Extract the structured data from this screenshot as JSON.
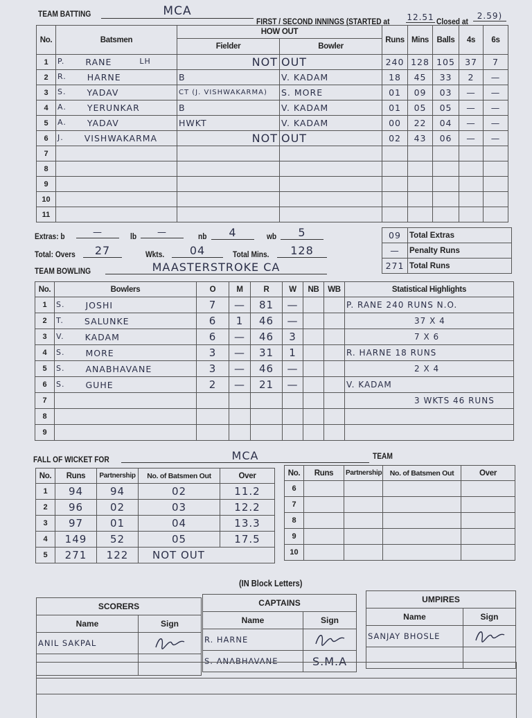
{
  "header": {
    "team_batting_label": "TEAM BATTING",
    "team_batting": "MCA",
    "innings_label": "FIRST / SECOND INNINGS (STARTED at",
    "started_at": "12.51",
    "closed_label": "Closed at",
    "closed_at": "2.59)"
  },
  "batting": {
    "headers": {
      "no": "No.",
      "batsmen": "Batsmen",
      "how_out": "HOW OUT",
      "fielder": "Fielder",
      "bowler": "Bowler",
      "runs": "Runs",
      "mins": "Mins",
      "balls": "Balls",
      "fours": "4s",
      "sixes": "6s"
    },
    "rows": [
      {
        "no": "1",
        "initial": "P.",
        "name": "RANE",
        "note": "LH",
        "fielder": "NOT",
        "bowler": "OUT",
        "runs": "240",
        "mins": "128",
        "balls": "105",
        "fours": "37",
        "sixes": "7"
      },
      {
        "no": "2",
        "initial": "R.",
        "name": "HARNE",
        "note": "",
        "fielder": "B",
        "bowler": "V. KADAM",
        "runs": "18",
        "mins": "45",
        "balls": "33",
        "fours": "2",
        "sixes": "—"
      },
      {
        "no": "3",
        "initial": "S.",
        "name": "YADAV",
        "note": "",
        "fielder": "CT (J. VISHWAKARMA)",
        "bowler": "S. MORE",
        "runs": "01",
        "mins": "09",
        "balls": "03",
        "fours": "—",
        "sixes": "—"
      },
      {
        "no": "4",
        "initial": "A.",
        "name": "YERUNKAR",
        "note": "",
        "fielder": "B",
        "bowler": "V. KADAM",
        "runs": "01",
        "mins": "05",
        "balls": "05",
        "fours": "—",
        "sixes": "—"
      },
      {
        "no": "5",
        "initial": "A.",
        "name": "YADAV",
        "note": "",
        "fielder": "HWKT",
        "bowler": "V. KADAM",
        "runs": "00",
        "mins": "22",
        "balls": "04",
        "fours": "—",
        "sixes": "—"
      },
      {
        "no": "6",
        "initial": "J.",
        "name": "VISHWAKARMA",
        "note": "",
        "fielder": "NOT",
        "bowler": "OUT",
        "runs": "02",
        "mins": "43",
        "balls": "06",
        "fours": "—",
        "sixes": "—"
      },
      {
        "no": "7"
      },
      {
        "no": "8"
      },
      {
        "no": "9"
      },
      {
        "no": "10"
      },
      {
        "no": "11"
      }
    ]
  },
  "extras": {
    "label": "Extras: b",
    "b": "—",
    "lb_label": "lb",
    "lb": "—",
    "nb_label": "nb",
    "nb": "4",
    "wb_label": "wb",
    "wb": "5",
    "overs_label": "Total: Overs",
    "overs": "27",
    "wkts_label": "Wkts.",
    "wkts": "04",
    "mins_label": "Total Mins.",
    "mins": "128",
    "summary": [
      {
        "value": "09",
        "label": "Total Extras"
      },
      {
        "value": "—",
        "label": "Penalty Runs"
      },
      {
        "value": "271",
        "label": "Total Runs"
      }
    ]
  },
  "bowling": {
    "team_label": "TEAM BOWLING",
    "team": "MAASTERSTROKE CA",
    "headers": {
      "no": "No.",
      "bowlers": "Bowlers",
      "o": "O",
      "m": "M",
      "r": "R",
      "w": "W",
      "nb": "NB",
      "wb": "WB",
      "highlights": "Statistical Highlights"
    },
    "rows": [
      {
        "no": "1",
        "initial": "S.",
        "name": "JOSHI",
        "o": "7",
        "m": "—",
        "r": "81",
        "w": "—",
        "highlight": "P. RANE  240 RUNS N.O."
      },
      {
        "no": "2",
        "initial": "T.",
        "name": "SALUNKE",
        "o": "6",
        "m": "1",
        "r": "46",
        "w": "—",
        "highlight": "37 X 4"
      },
      {
        "no": "3",
        "initial": "V.",
        "name": "KADAM",
        "o": "6",
        "m": "—",
        "r": "46",
        "w": "3",
        "highlight": "7 X 6"
      },
      {
        "no": "4",
        "initial": "S.",
        "name": "MORE",
        "o": "3",
        "m": "—",
        "r": "31",
        "w": "1",
        "highlight": "R. HARNE  18 RUNS"
      },
      {
        "no": "5",
        "initial": "S.",
        "name": "ANABHAVANE",
        "o": "3",
        "m": "—",
        "r": "46",
        "w": "—",
        "highlight": "2 X 4"
      },
      {
        "no": "6",
        "initial": "S.",
        "name": "GUHE",
        "o": "2",
        "m": "—",
        "r": "21",
        "w": "—",
        "highlight": "V. KADAM"
      },
      {
        "no": "7",
        "highlight": "3 WKTS  46 RUNS"
      },
      {
        "no": "8"
      },
      {
        "no": "9"
      }
    ]
  },
  "fow": {
    "label": "FALL OF WICKET FOR",
    "team": "MCA",
    "team_label": "TEAM",
    "headers": {
      "no": "No.",
      "runs": "Runs",
      "partnership": "Partnership",
      "batsmen_out": "No. of Batsmen Out",
      "over": "Over"
    },
    "rows": [
      {
        "no": "1",
        "runs": "94",
        "partnership": "94",
        "batsmen_out": "02",
        "over": "11.2"
      },
      {
        "no": "2",
        "runs": "96",
        "partnership": "02",
        "batsmen_out": "03",
        "over": "12.2"
      },
      {
        "no": "3",
        "runs": "97",
        "partnership": "01",
        "batsmen_out": "04",
        "over": "13.3"
      },
      {
        "no": "4",
        "runs": "149",
        "partnership": "52",
        "batsmen_out": "05",
        "over": "17.5"
      },
      {
        "no": "5",
        "runs": "271",
        "partnership": "122",
        "batsmen_out": "NOT OUT",
        "over": ""
      },
      {
        "no": "6"
      },
      {
        "no": "7"
      },
      {
        "no": "8"
      },
      {
        "no": "9"
      },
      {
        "no": "10"
      }
    ]
  },
  "signoff": {
    "block_letters": "(IN Block Letters)",
    "name_label": "Name",
    "sign_label": "Sign",
    "scorers": {
      "title": "SCORERS",
      "names": [
        "ANIL SAKPAL",
        ""
      ]
    },
    "captains": {
      "title": "CAPTAINS",
      "names": [
        "R. HARNE",
        "S. ANABHAVANE"
      ],
      "sign_text": "S.M.A"
    },
    "umpires": {
      "title": "UMPIRES",
      "names": [
        "SANJAY BHOSLE",
        ""
      ]
    }
  },
  "colors": {
    "paper": "#e4e6ec",
    "ink": "#2b2f48",
    "print": "#1e1e1e"
  }
}
